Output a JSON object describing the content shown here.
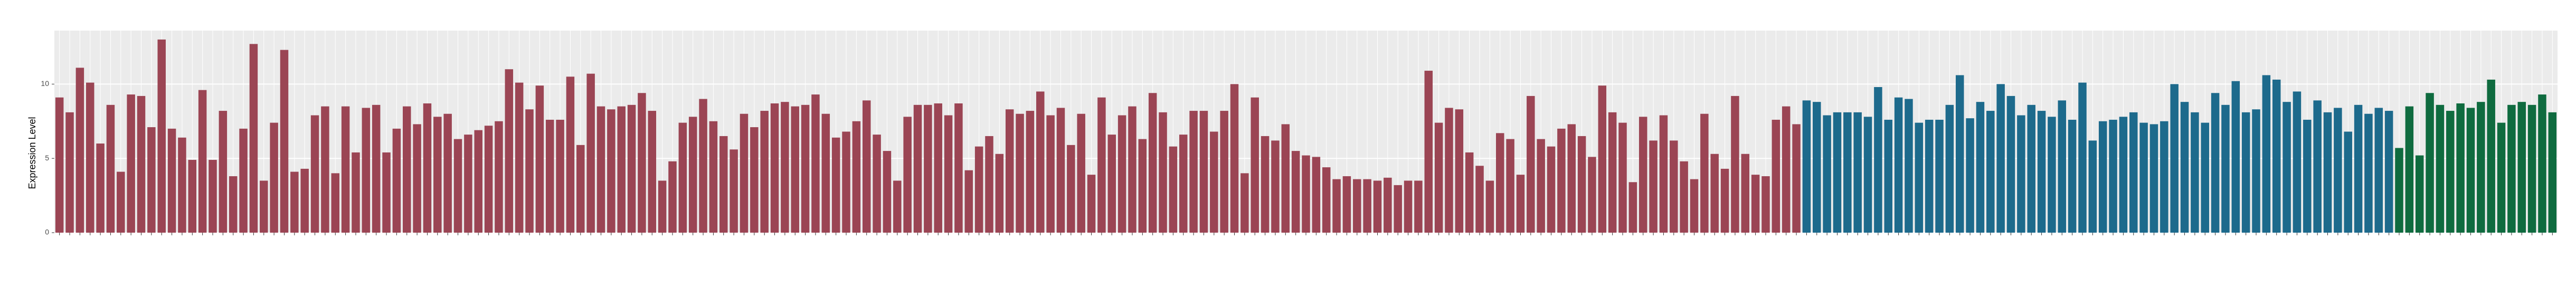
{
  "chart_data": {
    "type": "bar",
    "y_label": "Expression Level",
    "ylim": [
      0,
      13.6
    ],
    "yticks": [
      0,
      5,
      10
    ],
    "grid": true,
    "series": [
      {
        "color": "#9b4554",
        "values": [
          9.1,
          8.1,
          11.1,
          10.1,
          6.0,
          8.6,
          4.1,
          9.3,
          9.2,
          7.1,
          13.0,
          7.0,
          6.4,
          4.9,
          9.6,
          4.9,
          8.2,
          3.8,
          7.0,
          12.7,
          3.5,
          7.4,
          12.3,
          4.1,
          4.3,
          7.9,
          8.5,
          4.0,
          8.5,
          5.4,
          8.4,
          8.6,
          5.4,
          7.0,
          8.5,
          7.3,
          8.7,
          7.8,
          8.0,
          6.3,
          6.6,
          6.9,
          7.2,
          7.5,
          11.0,
          10.1,
          8.3,
          9.9,
          7.6,
          7.6,
          10.5,
          5.9,
          10.7,
          8.5,
          8.3,
          8.5,
          8.6,
          9.4,
          8.2,
          3.5,
          4.8,
          7.4,
          7.8,
          9.0,
          7.5,
          6.5,
          5.6,
          8.0,
          7.1,
          8.2,
          8.7,
          8.8,
          8.5,
          8.6,
          9.3,
          8.0,
          6.4,
          6.8,
          7.5,
          8.9,
          6.6,
          5.5,
          3.5,
          7.8,
          8.6,
          8.6,
          8.7,
          7.9,
          8.7,
          4.2,
          5.8,
          6.5,
          5.3,
          8.3,
          8.0,
          8.2,
          9.5,
          7.9,
          8.4,
          5.9,
          8.0,
          3.9,
          9.1,
          6.6,
          7.9,
          8.5,
          6.3,
          9.4,
          8.1,
          5.8,
          6.6,
          8.2,
          8.2,
          6.8,
          8.2,
          10.0,
          4.0,
          9.1,
          6.5,
          6.2,
          7.3,
          5.5,
          5.2,
          5.1,
          4.4,
          3.6,
          3.8,
          3.6,
          3.6,
          3.5,
          3.7,
          3.2,
          3.5,
          3.5,
          10.9,
          7.4,
          8.4,
          8.3,
          5.4,
          4.5,
          3.5,
          6.7,
          6.3,
          3.9,
          9.2,
          6.3,
          5.8,
          7.0,
          7.3,
          6.5,
          5.1,
          9.9,
          8.1,
          7.4,
          3.4,
          7.8,
          6.2,
          7.9,
          6.2,
          4.8,
          3.6,
          8.0,
          5.3,
          4.3,
          9.2,
          5.3,
          3.9,
          3.8,
          7.6,
          8.5,
          7.3
        ]
      },
      {
        "color": "#1d6a8c",
        "values": [
          8.9,
          8.8,
          7.9,
          8.1,
          8.1,
          8.1,
          7.8,
          9.8,
          7.6,
          9.1,
          9.0,
          7.4,
          7.6,
          7.6,
          8.6,
          10.6,
          7.7,
          8.8,
          8.2,
          10.0,
          9.2,
          7.9,
          8.6,
          8.2,
          7.8,
          8.9,
          7.6,
          10.1,
          6.2,
          7.5,
          7.6,
          7.8,
          8.1,
          7.4,
          7.3,
          7.5,
          10.0,
          8.8,
          8.1,
          7.4,
          9.4,
          8.6,
          10.2,
          8.1,
          8.3,
          10.6,
          10.3,
          8.8,
          9.5,
          7.6,
          8.9,
          8.1,
          8.4,
          6.8,
          8.6,
          8.0,
          8.4,
          8.2
        ]
      },
      {
        "color": "#0f6b3f",
        "values": [
          5.7,
          8.5,
          5.2,
          9.4,
          8.6,
          8.2,
          8.7,
          8.4,
          8.8,
          10.3,
          7.4,
          8.6,
          8.8,
          8.6,
          9.3,
          8.1
        ]
      }
    ]
  }
}
